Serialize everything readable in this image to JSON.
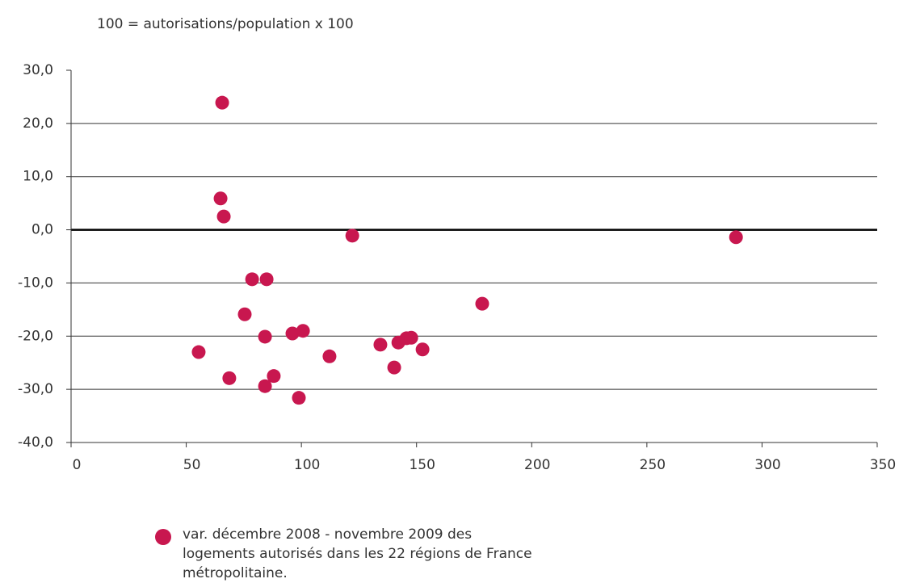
{
  "chart_data": {
    "type": "scatter",
    "subtitle": "100 = autorisations/population x 100",
    "series": [
      {
        "name": "var. décembre 2008 - novembre 2009 des logements autorisés dans les 22 régions de France métropolitaine.",
        "color": "#c8174f",
        "x": [
          65.6,
          64.9,
          66.3,
          122.1,
          288.7,
          78.6,
          84.9,
          178.5,
          75.4,
          84.2,
          96.1,
          100.7,
          55.4,
          112.2,
          134.3,
          142.1,
          145.6,
          147.7,
          152.6,
          140.3,
          68.7,
          88.0,
          84.2,
          98.9
        ],
        "values": [
          23.9,
          5.9,
          2.5,
          -1.1,
          -1.4,
          -9.3,
          -9.3,
          -13.9,
          -15.9,
          -20.1,
          -19.5,
          -19.0,
          -23.0,
          -23.8,
          -21.6,
          -21.2,
          -20.4,
          -20.3,
          -22.5,
          -25.9,
          -27.9,
          -27.5,
          -29.4,
          -31.6
        ]
      }
    ],
    "xlim": [
      0,
      350
    ],
    "xticks": [
      0,
      50,
      100,
      150,
      200,
      250,
      300,
      350
    ],
    "ylim": [
      -40,
      30
    ],
    "yticks": [
      {
        "value": -40,
        "label": "-40,0"
      },
      {
        "value": -30,
        "label": "-30,0"
      },
      {
        "value": -20,
        "label": "-20,0"
      },
      {
        "value": -10,
        "label": "-10,0"
      },
      {
        "value": 0,
        "label": "0,0"
      },
      {
        "value": 10,
        "label": "10,0"
      },
      {
        "value": 20,
        "label": "20,0"
      },
      {
        "value": 30,
        "label": "30,0"
      }
    ],
    "grid": true
  }
}
